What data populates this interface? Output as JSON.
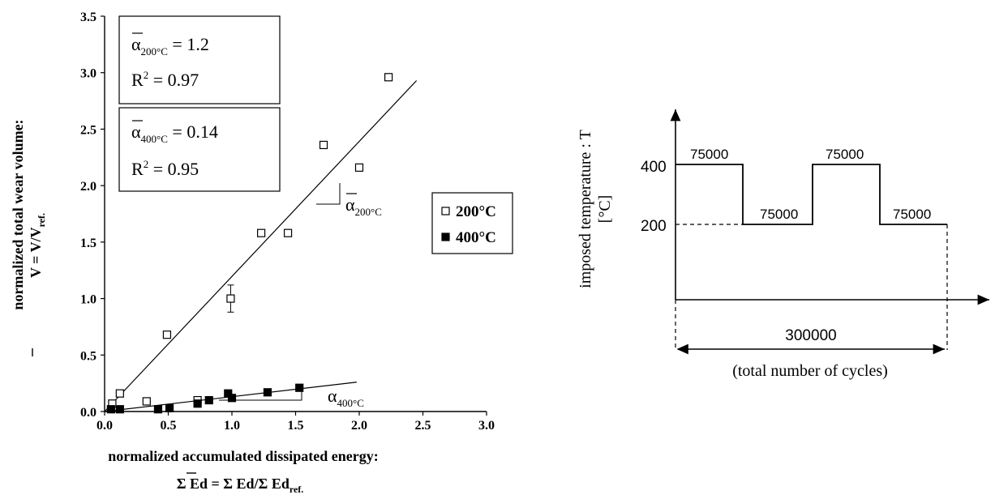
{
  "chart_data": [
    {
      "type": "scatter",
      "xlabel": "normalized accumulated dissipated energy:",
      "xlabel_formula": "Σ Ed = Σ Ed/Σ Ed",
      "xlabel_formula_sub": "ref.",
      "ylabel": "normalized total wear volume:",
      "ylabel_formula": "V =  V/V",
      "ylabel_formula_sub": "ref.",
      "xlim": [
        0,
        3.0
      ],
      "ylim": [
        0,
        3.5
      ],
      "xticks": [
        "0.0",
        "0.5",
        "1.0",
        "1.5",
        "2.0",
        "2.5",
        "3.0"
      ],
      "yticks": [
        "0.0",
        "0.5",
        "1.0",
        "1.5",
        "2.0",
        "2.5",
        "3.0",
        "3.5"
      ],
      "series": [
        {
          "name": "200°C",
          "marker": "open-square",
          "points": [
            [
              0.06,
              0.07
            ],
            [
              0.12,
              0.16
            ],
            [
              0.33,
              0.09
            ],
            [
              0.49,
              0.68
            ],
            [
              0.73,
              0.1
            ],
            [
              0.99,
              1.0
            ],
            [
              1.23,
              1.58
            ],
            [
              1.44,
              1.58
            ],
            [
              1.72,
              2.36
            ],
            [
              2.0,
              2.16
            ],
            [
              2.23,
              2.96
            ]
          ],
          "errorbar": {
            "x": 0.99,
            "y": 1.0,
            "err": 0.12
          },
          "fit": {
            "x": [
              0.0,
              2.45
            ],
            "y": [
              0.0,
              2.93
            ]
          }
        },
        {
          "name": "400°C",
          "marker": "filled-square",
          "points": [
            [
              0.05,
              0.02
            ],
            [
              0.12,
              0.02
            ],
            [
              0.42,
              0.02
            ],
            [
              0.51,
              0.03
            ],
            [
              0.73,
              0.07
            ],
            [
              0.82,
              0.1
            ],
            [
              0.97,
              0.16
            ],
            [
              1.0,
              0.12
            ],
            [
              1.28,
              0.17
            ],
            [
              1.53,
              0.21
            ]
          ],
          "fit": {
            "x": [
              0.0,
              1.98
            ],
            "y": [
              0.0,
              0.26
            ]
          }
        }
      ],
      "legend_position": "right",
      "annotations": {
        "box1": {
          "alpha": "α",
          "sub": "200°C",
          "eq": " = 1.2",
          "r2": "R",
          "r2_sup": "2",
          "r2_val": " = 0.97"
        },
        "box2": {
          "alpha": "α",
          "sub": "400°C",
          "eq": " = 0.14",
          "r2": "R",
          "r2_sup": "2",
          "r2_val": " = 0.95"
        },
        "slope200": {
          "alpha": "α",
          "sub": "200°C"
        },
        "slope400": {
          "alpha": "α",
          "sub": "400°C"
        }
      }
    },
    {
      "type": "line",
      "ylabel": "imposed temperature : T",
      "ylabel2": "[°C]",
      "yticks": [
        "400",
        "200"
      ],
      "steps": [
        {
          "temperature": 400,
          "cycles": "75000"
        },
        {
          "temperature": 200,
          "cycles": "75000"
        },
        {
          "temperature": 400,
          "cycles": "75000"
        },
        {
          "temperature": 200,
          "cycles": "75000"
        }
      ],
      "total_label": "300000",
      "total_caption": "(total number of cycles)"
    }
  ]
}
